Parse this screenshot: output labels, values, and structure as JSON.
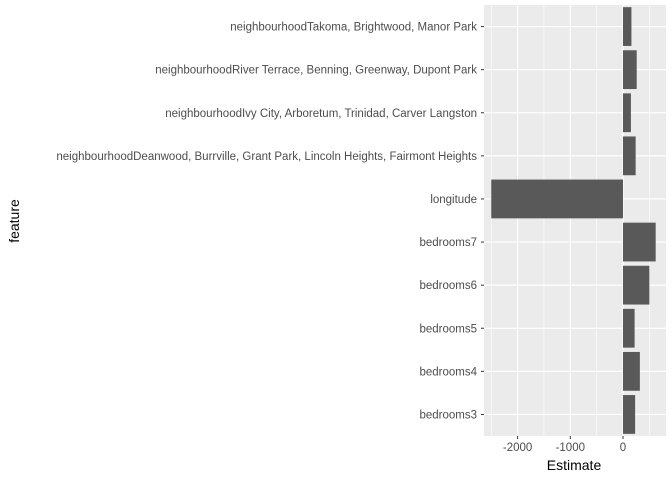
{
  "chart_data": {
    "type": "bar",
    "orientation": "horizontal",
    "title": "",
    "xlabel": "Estimate",
    "ylabel": "feature",
    "categories": [
      "bedrooms3",
      "bedrooms4",
      "bedrooms5",
      "bedrooms6",
      "bedrooms7",
      "longitude",
      "neighbourhoodDeanwood, Burrville, Grant Park, Lincoln Heights, Fairmont Heights",
      "neighbourhoodIvy City, Arboretum, Trinidad, Carver Langston",
      "neighbourhoodRiver Terrace, Benning, Greenway, Dupont Park",
      "neighbourhoodTakoma, Brightwood, Manor Park"
    ],
    "values": [
      230,
      320,
      220,
      500,
      620,
      -2500,
      240,
      150,
      260,
      160
    ],
    "xlim": [
      -2500,
      640
    ],
    "xticks": [
      -2000,
      -1000,
      0
    ],
    "xtick_labels": [
      "-2000",
      "-1000",
      "0"
    ],
    "grid": true,
    "legend": "none",
    "colors": {
      "bar": "#595959",
      "panel": "#ebebeb",
      "gridline": "#ffffff",
      "tick_label": "#4d4d4d",
      "axis_title": "#000000"
    }
  }
}
